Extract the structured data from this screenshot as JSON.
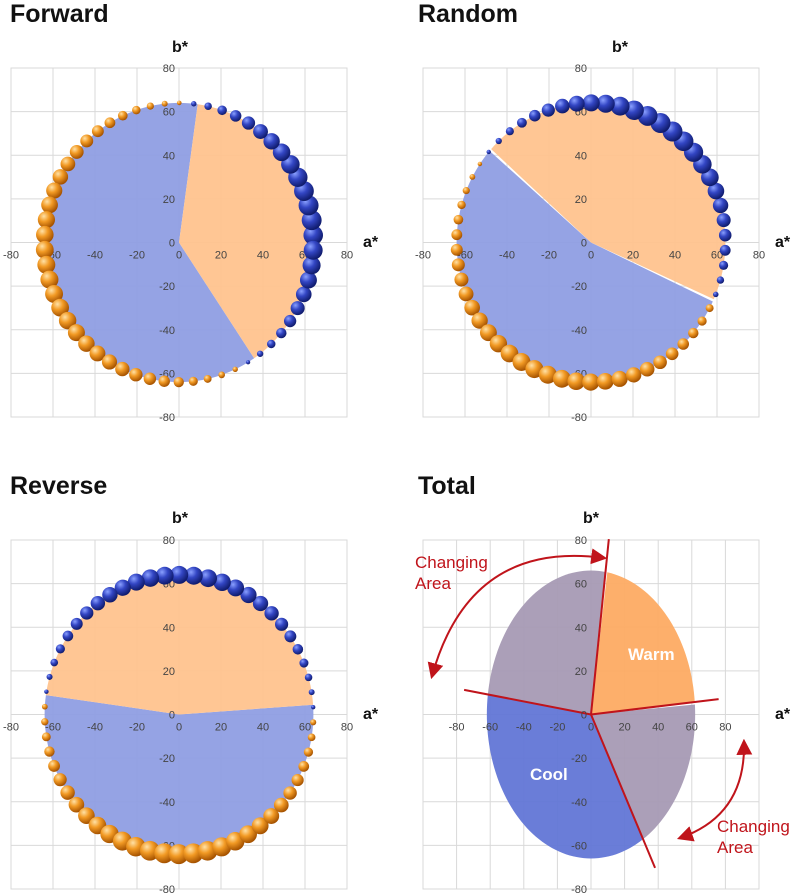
{
  "colors": {
    "cool_region": "#8f9ee3",
    "warm_region": "#ffc38e",
    "cool_sphere": "#2b3fae",
    "warm_sphere": "#f28a16",
    "grid": "#d9d9d9",
    "annotation": "#c0141b",
    "total_cool": "#6276d6",
    "total_warm": "#fdab63",
    "total_changing": "#a79ab4"
  },
  "chart_data": [
    {
      "type": "scatter",
      "title": "Forward",
      "xlabel": "a*",
      "ylabel": "b*",
      "xlim": [
        -80,
        80
      ],
      "ylim": [
        -80,
        80
      ],
      "xticks": [
        -80,
        -60,
        -40,
        -20,
        0,
        20,
        40,
        60,
        80
      ],
      "yticks": [
        -80,
        -60,
        -40,
        -20,
        0,
        20,
        40,
        60,
        80
      ],
      "grid": true,
      "radius": 64,
      "cool_range_deg": [
        82,
        304
      ],
      "bubbles": {
        "count": 58,
        "cool_start_deg": 300,
        "cool_end_deg": 88,
        "warm_start_deg": 82,
        "warm_end_deg": 306,
        "cool_size_range": [
          2,
          10
        ],
        "warm_size_range": [
          1.5,
          9
        ]
      }
    },
    {
      "type": "scatter",
      "title": "Random",
      "xlabel": "a*",
      "ylabel": "b*",
      "xlim": [
        -80,
        80
      ],
      "ylim": [
        -80,
        80
      ],
      "xticks": [
        -80,
        -60,
        -40,
        -20,
        0,
        20,
        40,
        60,
        80
      ],
      "yticks": [
        -80,
        -60,
        -40,
        -20,
        0,
        20,
        40,
        60,
        80
      ],
      "grid": true,
      "radius": 64,
      "cool_range_deg": [
        139,
        336
      ],
      "bubbles": {
        "count": 58,
        "cool_start_deg": 333,
        "cool_end_deg": 141,
        "warm_start_deg": 139,
        "warm_end_deg": 355,
        "cool_size_range": [
          2,
          10
        ],
        "warm_size_range": [
          1.5,
          9
        ]
      }
    },
    {
      "type": "scatter",
      "title": "Reverse",
      "xlabel": "a*",
      "ylabel": "b*",
      "xlim": [
        -80,
        80
      ],
      "ylim": [
        -80,
        80
      ],
      "xticks": [
        -80,
        -60,
        -40,
        -20,
        0,
        20,
        40,
        60,
        80
      ],
      "yticks": [
        -80,
        -60,
        -40,
        -20,
        0,
        20,
        40,
        60,
        80
      ],
      "grid": true,
      "radius": 64,
      "cool_range_deg": [
        172,
        364
      ],
      "bubbles": {
        "count": 58,
        "cool_start_deg": 358,
        "cool_end_deg": 176,
        "warm_start_deg": 170,
        "warm_end_deg": 365,
        "cool_size_range": [
          1.5,
          9
        ],
        "warm_size_range": [
          2,
          10
        ]
      }
    },
    {
      "type": "pie",
      "title": "Total",
      "xlabel": "a*",
      "ylabel": "b*",
      "xlim": [
        -100,
        100
      ],
      "ylim": [
        -80,
        80
      ],
      "xticks": [
        -80,
        -60,
        -40,
        -20,
        0,
        20,
        40,
        60,
        80
      ],
      "yticks": [
        -80,
        -60,
        -40,
        -20,
        0,
        20,
        40,
        60,
        80
      ],
      "grid": true,
      "radius_a": 62,
      "radius_b": 66,
      "sectors": [
        {
          "label": "Warm",
          "start_deg": 5,
          "end_deg": 82
        },
        {
          "label": "Cool",
          "start_deg": 172,
          "end_deg": 300
        },
        {
          "label": "",
          "start_deg": 82,
          "end_deg": 172
        },
        {
          "label": "",
          "start_deg": 300,
          "end_deg": 365
        }
      ],
      "boundary_lines_deg": [
        5,
        82,
        172,
        300
      ],
      "annotations": [
        {
          "text": [
            "Changing",
            "Area"
          ]
        },
        {
          "text": [
            "Changing",
            "Area"
          ]
        }
      ]
    }
  ]
}
